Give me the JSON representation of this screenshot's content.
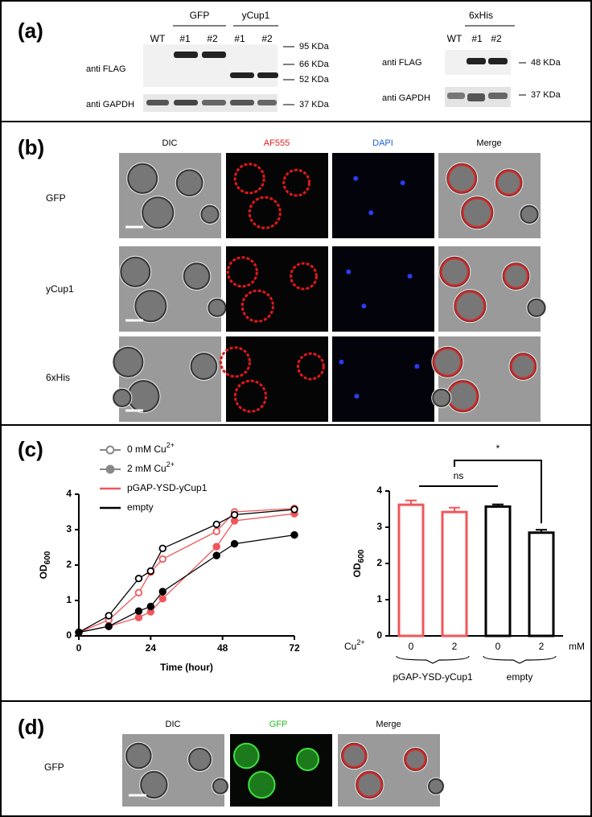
{
  "panel_a": {
    "label": "(a)",
    "left_blot": {
      "lanes": [
        "WT",
        "#1",
        "#2",
        "#1",
        "#2"
      ],
      "groups": [
        "GFP",
        "yCup1"
      ],
      "rows": [
        "anti FLAG",
        "anti GAPDH"
      ],
      "markers": [
        "95 KDa",
        "66 KDa",
        "52 KDa",
        "37 KDa"
      ]
    },
    "right_blot": {
      "lanes": [
        "WT",
        "#1",
        "#2"
      ],
      "group": "6xHis",
      "rows": [
        "anti FLAG",
        "anti GAPDH"
      ],
      "markers": [
        "48 KDa",
        "37 KDa"
      ]
    }
  },
  "panel_b": {
    "label": "(b)",
    "columns": [
      "DIC",
      "AF555",
      "DAPI",
      "Merge"
    ],
    "rows": [
      "GFP",
      "yCup1",
      "6xHis"
    ]
  },
  "panel_c": {
    "label": "(c)"
  },
  "chart_data": [
    {
      "type": "line",
      "x": [
        0,
        10,
        20,
        24,
        28,
        46,
        52,
        72
      ],
      "xlim": [
        0,
        72
      ],
      "xticks": [
        0,
        24,
        48,
        72
      ],
      "ylim": [
        0,
        4
      ],
      "yticks": [
        0,
        1,
        2,
        3,
        4
      ],
      "x_label": "Time (hour)",
      "y_label": {
        "text": "OD",
        "sub": "600"
      },
      "legend": [
        {
          "text": "0 mM Cu",
          "sup": "2+",
          "marker": "open",
          "color": "#888888"
        },
        {
          "text": "2 mM Cu",
          "sup": "2+",
          "marker": "filled",
          "color": "#888888"
        },
        {
          "text": "pGAP-YSD-yCup1",
          "marker": "line",
          "color": "#f0575a"
        },
        {
          "text": "empty",
          "marker": "line",
          "color": "#000000"
        }
      ],
      "series": [
        {
          "color": "#f0575a",
          "marker": "open",
          "values": [
            0.1,
            0.45,
            1.22,
            1.8,
            2.17,
            2.95,
            3.5,
            3.6
          ]
        },
        {
          "color": "#f0575a",
          "marker": "filled",
          "values": [
            0.1,
            0.27,
            0.52,
            0.68,
            1.05,
            2.52,
            3.25,
            3.45
          ]
        },
        {
          "color": "#000000",
          "marker": "open",
          "values": [
            0.1,
            0.57,
            1.62,
            1.83,
            2.47,
            3.15,
            3.42,
            3.57
          ]
        },
        {
          "color": "#000000",
          "marker": "filled",
          "values": [
            0.1,
            0.27,
            0.7,
            0.83,
            1.25,
            2.27,
            2.6,
            2.85
          ]
        }
      ]
    },
    {
      "type": "bar",
      "categories": [
        "0",
        "2",
        "0",
        "2"
      ],
      "values": [
        3.62,
        3.42,
        3.57,
        2.85
      ],
      "errors": [
        0.12,
        0.12,
        0.06,
        0.08
      ],
      "colors": [
        "#f0575a",
        "#f0575a",
        "#000000",
        "#000000"
      ],
      "ylim": [
        0,
        4
      ],
      "yticks": [
        0,
        1,
        2,
        3,
        4
      ],
      "y_label": {
        "text": "OD",
        "sub": "600"
      },
      "x_prefix": {
        "text": "Cu",
        "sup": "2+"
      },
      "x_unit": "mM",
      "groups": [
        "pGAP-YSD-yCup1",
        "empty"
      ],
      "significance": [
        "ns",
        "*"
      ]
    }
  ],
  "panel_d": {
    "label": "(d)",
    "columns": [
      "DIC",
      "GFP",
      "Merge"
    ],
    "rows": [
      "GFP"
    ]
  }
}
